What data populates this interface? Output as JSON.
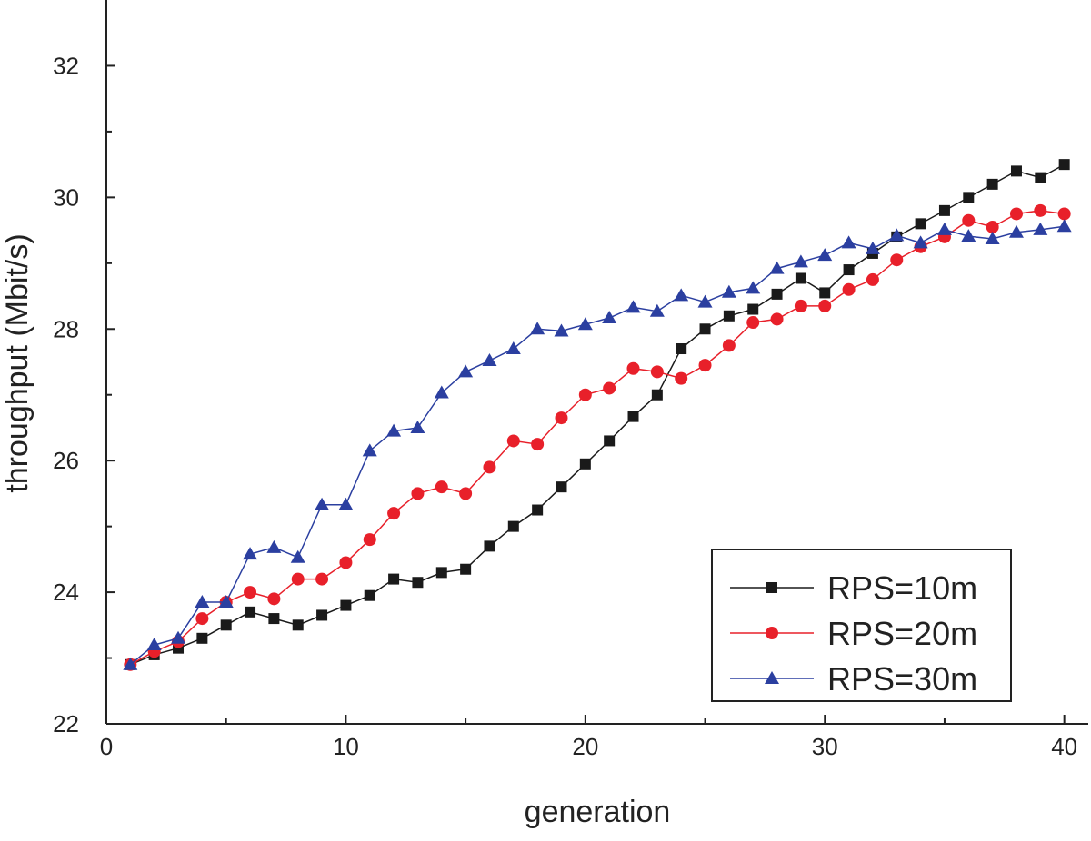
{
  "chart_data": {
    "type": "line",
    "title": "",
    "xlabel": "generation",
    "ylabel": "throughput (Mbit/s)",
    "xlim": [
      0,
      41
    ],
    "ylim": [
      22,
      33
    ],
    "xticks": [
      0,
      10,
      20,
      30,
      40
    ],
    "yticks": [
      22,
      24,
      26,
      28,
      30,
      32
    ],
    "xtick_labels": [
      "0",
      "10",
      "20",
      "30",
      "40"
    ],
    "ytick_labels": [
      "22",
      "24",
      "26",
      "28",
      "30",
      "32"
    ],
    "grid": false,
    "legend_position": "bottom-right",
    "x": [
      1,
      2,
      3,
      4,
      5,
      6,
      7,
      8,
      9,
      10,
      11,
      12,
      13,
      14,
      15,
      16,
      17,
      18,
      19,
      20,
      21,
      22,
      23,
      24,
      25,
      26,
      27,
      28,
      29,
      30,
      31,
      32,
      33,
      34,
      35,
      36,
      37,
      38,
      39,
      40
    ],
    "series": [
      {
        "name": "RPS=10m",
        "color": "#1a1a1a",
        "marker": "square",
        "values": [
          22.9,
          23.05,
          23.15,
          23.3,
          23.5,
          23.7,
          23.6,
          23.5,
          23.65,
          23.8,
          23.95,
          24.2,
          24.15,
          24.3,
          24.35,
          24.7,
          25.0,
          25.25,
          25.6,
          25.95,
          26.3,
          26.67,
          27.0,
          27.7,
          28.0,
          28.2,
          28.3,
          28.53,
          28.77,
          28.55,
          28.9,
          29.15,
          29.4,
          29.6,
          29.8,
          30.0,
          30.2,
          30.4,
          30.3,
          30.5
        ]
      },
      {
        "name": "RPS=20m",
        "color": "#e8202a",
        "marker": "circle",
        "values": [
          22.9,
          23.1,
          23.25,
          23.6,
          23.85,
          24.0,
          23.9,
          24.2,
          24.2,
          24.45,
          24.8,
          25.2,
          25.5,
          25.6,
          25.5,
          25.9,
          26.3,
          26.25,
          26.65,
          27.0,
          27.1,
          27.4,
          27.35,
          27.25,
          27.45,
          27.75,
          28.1,
          28.15,
          28.35,
          28.35,
          28.6,
          28.75,
          29.05,
          29.25,
          29.4,
          29.65,
          29.55,
          29.75,
          29.8,
          29.75
        ]
      },
      {
        "name": "RPS=30m",
        "color": "#2b3fa0",
        "marker": "triangle",
        "values": [
          22.9,
          23.2,
          23.3,
          23.85,
          23.85,
          24.58,
          24.68,
          24.53,
          25.33,
          25.33,
          26.15,
          26.45,
          26.5,
          27.03,
          27.35,
          27.52,
          27.7,
          28.0,
          27.97,
          28.07,
          28.17,
          28.33,
          28.27,
          28.51,
          28.41,
          28.56,
          28.62,
          28.92,
          29.02,
          29.12,
          29.31,
          29.22,
          29.42,
          29.31,
          29.51,
          29.41,
          29.37,
          29.47,
          29.51,
          29.56
        ]
      }
    ]
  }
}
